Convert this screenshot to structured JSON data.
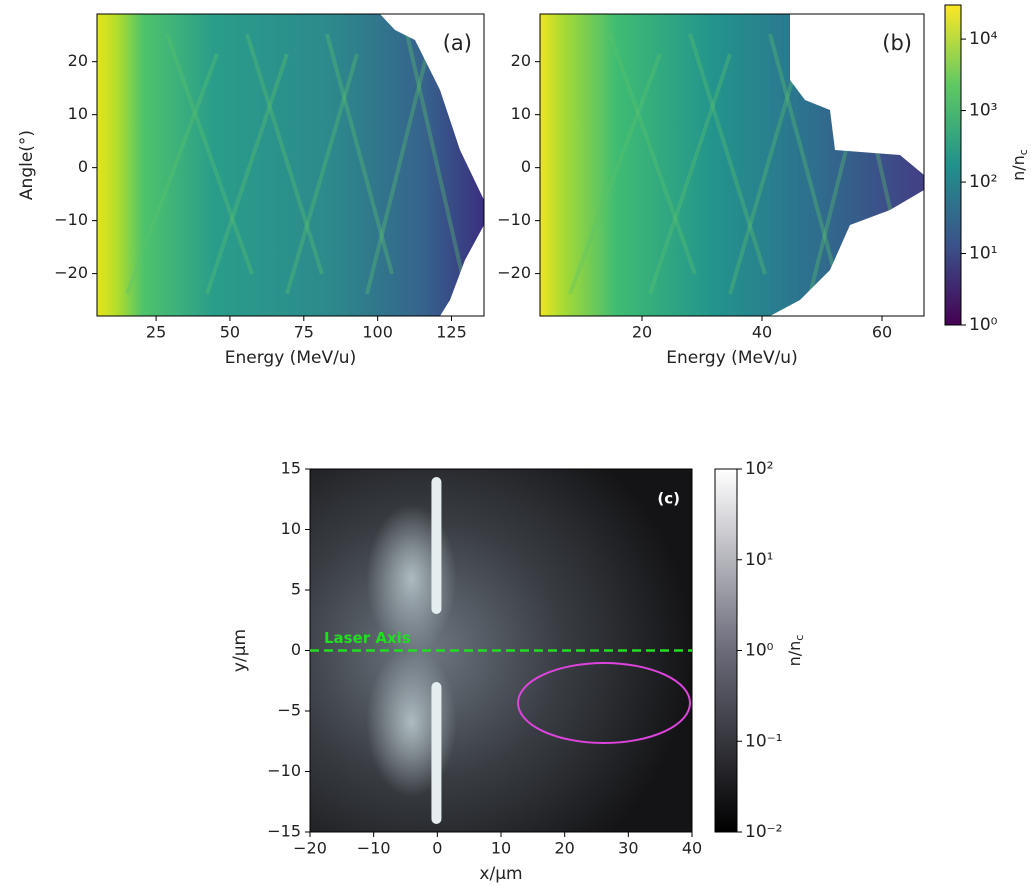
{
  "chart_data": [
    {
      "type": "heatmap",
      "panel_label": "(a)",
      "xlabel": "Energy (MeV/u)",
      "ylabel": "Angle(°)",
      "xlim": [
        5,
        136
      ],
      "ylim": [
        -28,
        29
      ],
      "xticks": [
        25,
        50,
        75,
        100,
        125
      ],
      "yticks": [
        {
          "value": -20,
          "label": "−20"
        },
        {
          "value": -10,
          "label": "−10"
        },
        0,
        10,
        20
      ],
      "colormap": "viridis"
    },
    {
      "type": "heatmap",
      "panel_label": "(b)",
      "xlabel": "Energy (MeV/u)",
      "xlim": [
        3,
        67
      ],
      "ylim": [
        -28,
        29
      ],
      "xticks": [
        20,
        40,
        60
      ],
      "yticks": [
        {
          "value": -20,
          "label": "−20"
        },
        {
          "value": -10,
          "label": "−10"
        },
        0,
        10,
        20
      ],
      "colormap": "viridis",
      "colorbar": {
        "label": "n/n",
        "label_sub": "c",
        "log_scale": true,
        "lim": [
          1,
          30000
        ],
        "ticks": [
          {
            "value": 1,
            "label": "10⁰"
          },
          {
            "value": 10,
            "label": "10¹"
          },
          {
            "value": 100,
            "label": "10²"
          },
          {
            "value": 1000,
            "label": "10³"
          },
          {
            "value": 10000,
            "label": "10⁴"
          }
        ]
      }
    },
    {
      "type": "heatmap",
      "panel_label": "(c)",
      "xlabel": "x/μm",
      "ylabel": "y/μm",
      "xlim": [
        -20,
        40
      ],
      "ylim": [
        -15,
        15
      ],
      "xticks": [
        {
          "value": -20,
          "label": "−20"
        },
        {
          "value": -10,
          "label": "−10"
        },
        0,
        10,
        20,
        30,
        40
      ],
      "yticks": [
        {
          "value": -15,
          "label": "−15"
        },
        {
          "value": -10,
          "label": "−10"
        },
        {
          "value": -5,
          "label": "−5"
        },
        0,
        5,
        10,
        15
      ],
      "colormap": "gray",
      "annotation": {
        "text": "Laser Axis",
        "y": 0
      },
      "colorbar": {
        "label": "n/n",
        "label_sub": "c",
        "log_scale": true,
        "lim": [
          0.01,
          100
        ],
        "ticks": [
          {
            "value": 0.01,
            "label": "10⁻²"
          },
          {
            "value": 0.1,
            "label": "10⁻¹"
          },
          {
            "value": 1,
            "label": "10⁰"
          },
          {
            "value": 10,
            "label": "10¹"
          },
          {
            "value": 100,
            "label": "10²"
          }
        ]
      }
    }
  ]
}
